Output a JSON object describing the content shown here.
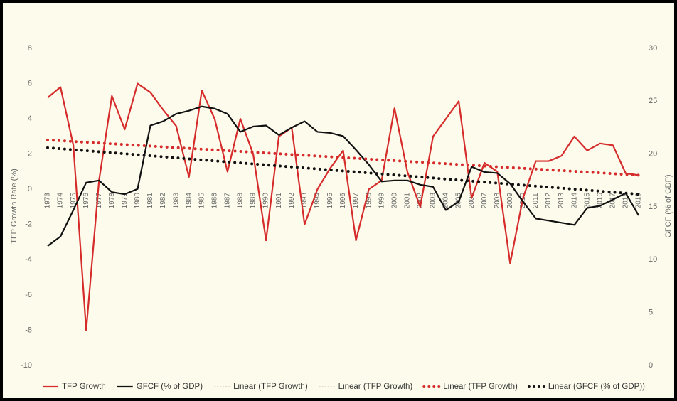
{
  "chart_data": {
    "type": "line",
    "categories": [
      1973,
      1974,
      1975,
      1976,
      1977,
      1978,
      1979,
      1980,
      1981,
      1982,
      1983,
      1984,
      1985,
      1986,
      1987,
      1988,
      1989,
      1990,
      1991,
      1992,
      1993,
      1994,
      1995,
      1996,
      1997,
      1998,
      1999,
      2000,
      2001,
      2002,
      2003,
      2004,
      2005,
      2006,
      2007,
      2008,
      2009,
      2010,
      2011,
      2012,
      2013,
      2014,
      2015,
      2016,
      2017,
      2018,
      2019
    ],
    "ylabel": "TFP Growth Rate (%)",
    "y2label": "GFCF (% of GDP)",
    "ylim": [
      -10,
      8
    ],
    "yticks": [
      -10,
      -8,
      -6,
      -4,
      -2,
      0,
      2,
      4,
      6,
      8
    ],
    "y2lim": [
      0,
      30
    ],
    "y2ticks": [
      0,
      5,
      10,
      15,
      20,
      25,
      30
    ],
    "series": [
      {
        "name": "TFP Growth",
        "color": "#d62b2b",
        "style": "solid",
        "axis": "y",
        "values": [
          5.2,
          5.8,
          2.5,
          -8,
          0.5,
          5.3,
          3.4,
          6.0,
          5.5,
          4.5,
          3.6,
          0.7,
          5.6,
          4.0,
          1.0,
          4.0,
          2.0,
          -2.9,
          3.0,
          3.5,
          -2.0,
          0.0,
          1.2,
          2.2,
          -2.9,
          0.0,
          0.5,
          4.6,
          1.0,
          -1.0,
          3.0,
          4.0,
          5.0,
          -0.5,
          1.5,
          1.0,
          -4.2,
          -0.5,
          1.6,
          1.6,
          1.9,
          3.0,
          2.2,
          2.6,
          2.5,
          0.9,
          0.8
        ]
      },
      {
        "name": "GFCF (% of GDP)",
        "color": "#111111",
        "style": "solid",
        "axis": "y2",
        "values": [
          11.3,
          12.2,
          14.7,
          17.3,
          17.5,
          16.4,
          16.2,
          16.7,
          22.7,
          23.1,
          23.8,
          24.1,
          24.5,
          24.3,
          23.8,
          22.1,
          22.6,
          22.7,
          21.8,
          22.5,
          23.1,
          22.1,
          22.0,
          21.7,
          20.4,
          19.0,
          17.4,
          17.5,
          17.5,
          17.1,
          16.9,
          14.7,
          15.5,
          18.8,
          18.3,
          18.2,
          17.2,
          15.5,
          13.9,
          13.7,
          13.5,
          13.3,
          14.9,
          15.1,
          15.7,
          16.3,
          14.2
        ]
      },
      {
        "name": "Linear (TFP Growth)",
        "color": "#c9b89a",
        "style": "thin-dotted",
        "axis": "y"
      },
      {
        "name": "Linear (TFP Growth)",
        "color": "#c9b89a",
        "style": "thin-dotted",
        "axis": "y"
      },
      {
        "name": "Linear (TFP Growth)",
        "color": "#d62b2b",
        "style": "dotted",
        "axis": "y",
        "endpoints": [
          2.8,
          0.8
        ]
      },
      {
        "name": "Linear (GFCF (% of GDP))",
        "color": "#111111",
        "style": "dotted",
        "axis": "y2",
        "endpoints": [
          20.6,
          16.2
        ]
      }
    ]
  }
}
